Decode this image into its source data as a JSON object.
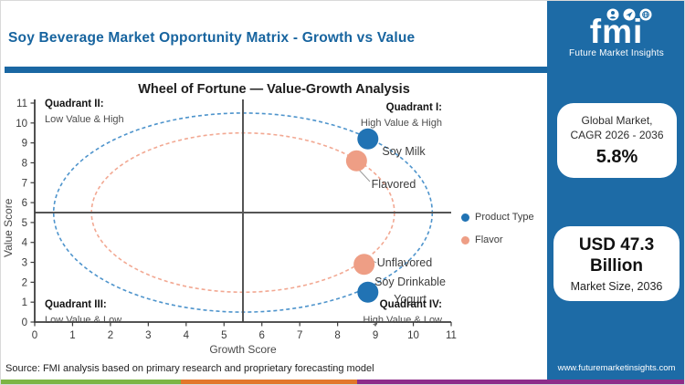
{
  "header": {
    "title": "Soy Beverage Market Opportunity Matrix - Growth vs Value"
  },
  "logo": {
    "brand": "fmi",
    "tagline": "Future Market Insights"
  },
  "sidebar": {
    "cagr_card": {
      "label_line1": "Global Market,",
      "label_line2": "CAGR 2026 - 2036",
      "value": "5.8%"
    },
    "size_card": {
      "value_line1": "USD 47.3",
      "value_line2": "Billion",
      "label": "Market Size, 2036"
    },
    "website": "www.futuremarketinsights.com"
  },
  "footer": {
    "source": "Source: FMI analysis based on primary research and proprietary forecasting model"
  },
  "colors": {
    "sidebar_blue": "#1d6ba6",
    "divider_blue": "#1a67a3",
    "title_blue": "#17649f",
    "product_type": "#2173b4",
    "flavor": "#ee9e85",
    "ellipse_product": "#4e94cc",
    "ellipse_flavor": "#f2a892",
    "stripe_green": "#7cb544",
    "stripe_orange": "#e2772b",
    "stripe_purple": "#8d2d8a"
  },
  "chart_data": {
    "type": "scatter",
    "title": "Wheel of Fortune — Value-Growth Analysis",
    "xlabel": "Growth Score",
    "ylabel": "Value Score",
    "xlim": [
      0,
      11
    ],
    "ylim": [
      0,
      11
    ],
    "xticks": [
      0,
      1,
      2,
      3,
      4,
      5,
      6,
      7,
      8,
      9,
      10,
      11
    ],
    "yticks": [
      0,
      1,
      2,
      3,
      4,
      5,
      6,
      7,
      8,
      9,
      10,
      11
    ],
    "grid": false,
    "crosshair": {
      "x": 5.5,
      "y": 5.5
    },
    "series": [
      {
        "name": "Product Type",
        "color": "#2173b4",
        "points": [
          {
            "label": "Soy Milk",
            "label_lines": [
              "Soy Milk"
            ],
            "x": 8.8,
            "y": 9.2
          },
          {
            "label": "Soy Drinkable Yogurt",
            "label_lines": [
              "Soy Drinkable",
              "Yogurt"
            ],
            "x": 8.8,
            "y": 1.5
          }
        ]
      },
      {
        "name": "Flavor",
        "color": "#ee9e85",
        "points": [
          {
            "label": "Flavored",
            "label_lines": [
              "Flavored"
            ],
            "x": 8.5,
            "y": 8.1
          },
          {
            "label": "Unflavored",
            "label_lines": [
              "Unflavored"
            ],
            "x": 8.7,
            "y": 2.9
          }
        ]
      }
    ],
    "ellipses": [
      {
        "series": "Product Type",
        "cx": 5.5,
        "cy": 5.5,
        "rx": 5.0,
        "ry": 5.0,
        "color": "#4e94cc"
      },
      {
        "series": "Flavor",
        "cx": 5.5,
        "cy": 5.5,
        "rx": 4.0,
        "ry": 4.0,
        "color": "#f2a892"
      }
    ],
    "quadrants": [
      {
        "name": "Quadrant II:",
        "desc": "Low Value & High",
        "position": "top-left"
      },
      {
        "name": "Quadrant I:",
        "desc": "High Value & High",
        "position": "top-right"
      },
      {
        "name": "Quadrant III:",
        "desc": "Low Value & Low",
        "position": "bottom-left"
      },
      {
        "name": "Quadrant IV:",
        "desc": "High Value & Low",
        "position": "bottom-right"
      }
    ],
    "legend": {
      "position": "right",
      "items": [
        {
          "label": "Product Type",
          "color": "#2173b4"
        },
        {
          "label": "Flavor",
          "color": "#ee9e85"
        }
      ]
    }
  }
}
